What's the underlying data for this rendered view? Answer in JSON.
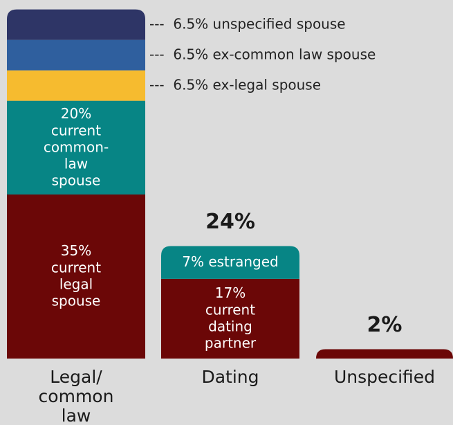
{
  "chart_data": {
    "type": "stacked_bar",
    "categories": [
      "Legal/ common law",
      "Dating",
      "Unspecified"
    ],
    "annotation_leader": "---",
    "series": [
      {
        "name": "current legal spouse",
        "color": "#6b0707",
        "values": [
          35,
          null,
          null
        ],
        "value_labels": [
          "35%",
          null,
          null
        ],
        "label_layout": "stacked"
      },
      {
        "name": "current dating partner",
        "color": "#6b0707",
        "values": [
          null,
          17,
          null
        ],
        "value_labels": [
          null,
          "17%",
          null
        ],
        "label_layout": "stacked"
      },
      {
        "color": "#6b0707",
        "values": [
          null,
          null,
          2
        ]
      },
      {
        "name": "current common-law spouse",
        "color": "#078585",
        "values": [
          20,
          null,
          null
        ],
        "value_labels": [
          "20%",
          null,
          null
        ],
        "label_layout": "stacked"
      },
      {
        "name": "estranged",
        "color": "#078585",
        "values": [
          null,
          7,
          null
        ],
        "value_labels": [
          null,
          "7%",
          null
        ],
        "label_layout": "inline"
      },
      {
        "name": "ex-legal spouse",
        "color": "#f6bb2f",
        "values": [
          6.5,
          null,
          null
        ],
        "value_labels": [
          "6.5%",
          null,
          null
        ],
        "label_layout": "outside"
      },
      {
        "name": "ex-common law spouse",
        "color": "#2f5f9e",
        "values": [
          6.5,
          null,
          null
        ],
        "value_labels": [
          "6.5%",
          null,
          null
        ],
        "label_layout": "outside"
      },
      {
        "name": "unspecified spouse",
        "color": "#2e3566",
        "values": [
          6.5,
          null,
          null
        ],
        "value_labels": [
          "6.5%",
          null,
          null
        ],
        "label_layout": "outside"
      }
    ],
    "totals": [
      null,
      24,
      2
    ],
    "total_labels": [
      null,
      "24%",
      "2%"
    ]
  }
}
